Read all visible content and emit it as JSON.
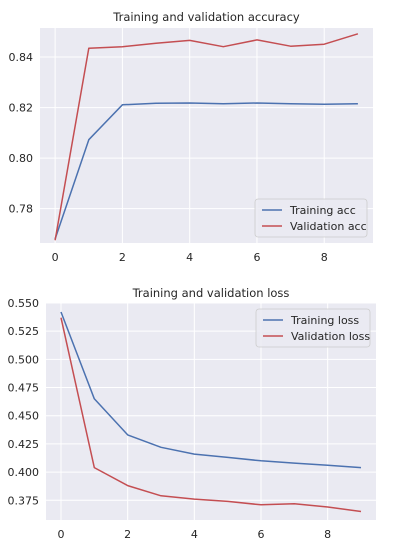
{
  "chart_data": [
    {
      "type": "line",
      "title": "Training and validation accuracy",
      "xlabel": "",
      "ylabel": "",
      "xlim": [
        -0.45,
        9.45
      ],
      "ylim": [
        0.7664,
        0.8515
      ],
      "xticks": [
        0,
        2,
        4,
        6,
        8
      ],
      "yticks": [
        0.78,
        0.8,
        0.82,
        0.84
      ],
      "ytick_labels": [
        "0.78",
        "0.80",
        "0.82",
        "0.84"
      ],
      "grid": true,
      "legend_position": "lower-right",
      "x": [
        0,
        1,
        2,
        3,
        4,
        5,
        6,
        7,
        8,
        9
      ],
      "series": [
        {
          "name": "Training acc",
          "color": "#4c72b0",
          "values": [
            0.768,
            0.8073,
            0.8211,
            0.8217,
            0.8218,
            0.8215,
            0.8218,
            0.8215,
            0.8213,
            0.8215
          ]
        },
        {
          "name": "Validation acc",
          "color": "#c44e52",
          "values": [
            0.7675,
            0.8435,
            0.8441,
            0.8455,
            0.8466,
            0.8441,
            0.8468,
            0.8443,
            0.8451,
            0.8492
          ]
        }
      ]
    },
    {
      "type": "line",
      "title": "Training and validation loss",
      "xlabel": "",
      "ylabel": "",
      "xlim": [
        -0.45,
        9.45
      ],
      "ylim": [
        0.3575,
        0.55
      ],
      "xticks": [
        0,
        2,
        4,
        6,
        8
      ],
      "yticks": [
        0.375,
        0.4,
        0.425,
        0.45,
        0.475,
        0.5,
        0.525,
        0.55
      ],
      "ytick_labels": [
        "0.375",
        "0.400",
        "0.425",
        "0.450",
        "0.475",
        "0.500",
        "0.525",
        "0.550"
      ],
      "grid": true,
      "legend_position": "top-right",
      "x": [
        0,
        1,
        2,
        3,
        4,
        5,
        6,
        7,
        8,
        9
      ],
      "series": [
        {
          "name": "Training loss",
          "color": "#4c72b0",
          "values": [
            0.542,
            0.465,
            0.433,
            0.422,
            0.416,
            0.413,
            0.41,
            0.408,
            0.406,
            0.404
          ]
        },
        {
          "name": "Validation loss",
          "color": "#c44e52",
          "values": [
            0.537,
            0.404,
            0.388,
            0.379,
            0.376,
            0.374,
            0.371,
            0.372,
            0.369,
            0.365
          ]
        }
      ]
    }
  ],
  "style": {
    "plot_background": "#eaeaf2",
    "grid_color": "#ffffff",
    "text_color": "#262626"
  }
}
